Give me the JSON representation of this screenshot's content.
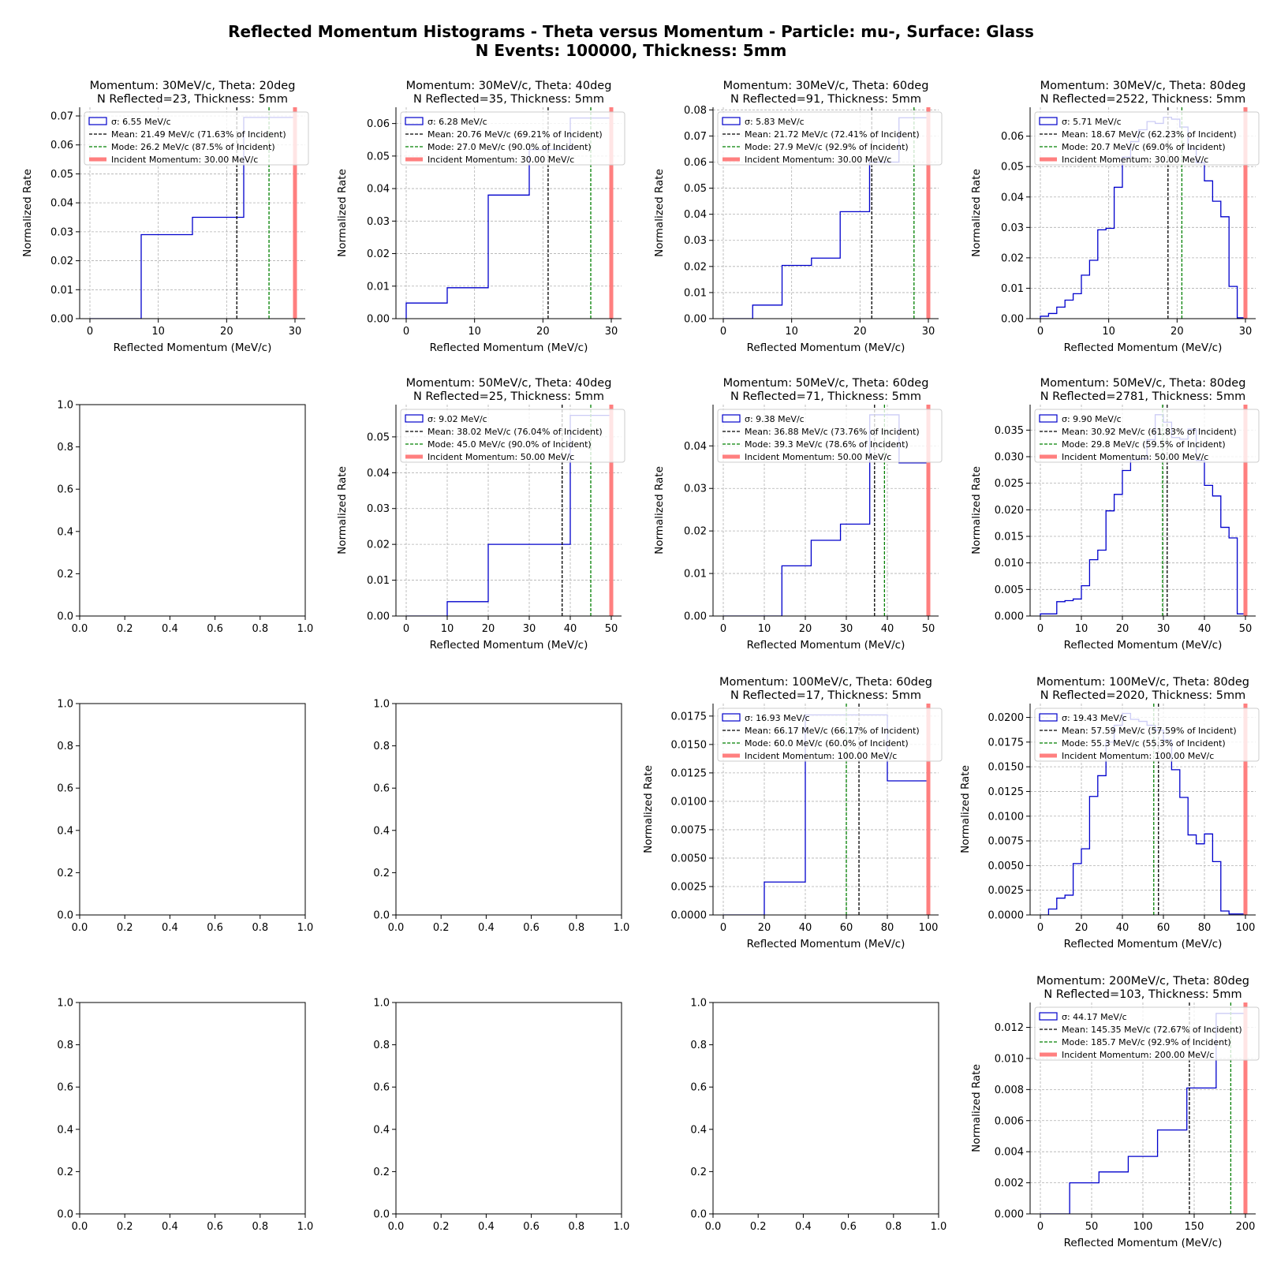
{
  "figure": {
    "title_line1": "Reflected Momentum Histograms - Theta versus Momentum - Particle: mu-, Surface: Glass",
    "title_line2": "N Events: 100000, Thickness: 5mm"
  },
  "colors": {
    "histogram": "#0000cc",
    "mean": "#000000",
    "mode": "#008000",
    "incident": "#ff7f7f",
    "grid": "#b0b0b0"
  },
  "chart_data": [
    {
      "type": "bar",
      "row": 0,
      "col": 0,
      "title": "Momentum: 30MeV/c, Theta: 20deg\n N Reflected=23, Thickness: 5mm",
      "xlabel": "Reflected Momentum (MeV/c)",
      "ylabel": "Normalized Rate",
      "xlim": [
        -1.5,
        31.5
      ],
      "ylim": [
        0,
        0.073
      ],
      "xticks": [
        0,
        10,
        20,
        30
      ],
      "xtick_labels": [
        "0",
        "10",
        "20",
        "30"
      ],
      "yticks": [
        0,
        0.01,
        0.02,
        0.03,
        0.04,
        0.05,
        0.06,
        0.07
      ],
      "ytick_labels": [
        "0.00",
        "0.01",
        "0.02",
        "0.03",
        "0.04",
        "0.05",
        "0.06",
        "0.07"
      ],
      "bin_edges": [
        0,
        7.5,
        15,
        22.5,
        30
      ],
      "values": [
        0,
        0.029,
        0.035,
        0.0695
      ],
      "mean": 21.49,
      "mode": 26.2,
      "incident": 30,
      "legend": [
        "σ: 6.55 MeV/c",
        "Mean: 21.49 MeV/c (71.63% of Incident)",
        "Mode: 26.2 MeV/c (87.5% of Incident)",
        "Incident Momentum: 30.00 MeV/c"
      ]
    },
    {
      "type": "bar",
      "row": 0,
      "col": 1,
      "title": "Momentum: 30MeV/c, Theta: 40deg\n N Reflected=35, Thickness: 5mm",
      "xlabel": "Reflected Momentum (MeV/c)",
      "ylabel": "Normalized Rate",
      "xlim": [
        -1.5,
        31.5
      ],
      "ylim": [
        0,
        0.065
      ],
      "xticks": [
        0,
        10,
        20,
        30
      ],
      "xtick_labels": [
        "0",
        "10",
        "20",
        "30"
      ],
      "yticks": [
        0,
        0.01,
        0.02,
        0.03,
        0.04,
        0.05,
        0.06
      ],
      "ytick_labels": [
        "0.00",
        "0.01",
        "0.02",
        "0.03",
        "0.04",
        "0.05",
        "0.06"
      ],
      "bin_edges": [
        0,
        6,
        12,
        18,
        24,
        30
      ],
      "values": [
        0.0048,
        0.0095,
        0.038,
        0.052,
        0.0617
      ],
      "mean": 20.76,
      "mode": 27.0,
      "incident": 30,
      "legend": [
        "σ: 6.28 MeV/c",
        "Mean: 20.76 MeV/c (69.21% of Incident)",
        "Mode: 27.0 MeV/c (90.0% of Incident)",
        "Incident Momentum: 30.00 MeV/c"
      ]
    },
    {
      "type": "bar",
      "row": 0,
      "col": 2,
      "title": "Momentum: 30MeV/c, Theta: 60deg\n N Reflected=91, Thickness: 5mm",
      "xlabel": "Reflected Momentum (MeV/c)",
      "ylabel": "Normalized Rate",
      "xlim": [
        -1.5,
        31.5
      ],
      "ylim": [
        0,
        0.081
      ],
      "xticks": [
        0,
        10,
        20,
        30
      ],
      "xtick_labels": [
        "0",
        "10",
        "20",
        "30"
      ],
      "yticks": [
        0,
        0.01,
        0.02,
        0.03,
        0.04,
        0.05,
        0.06,
        0.07,
        0.08
      ],
      "ytick_labels": [
        "0.00",
        "0.01",
        "0.02",
        "0.03",
        "0.04",
        "0.05",
        "0.06",
        "0.07",
        "0.08"
      ],
      "bin_edges": [
        0,
        4.3,
        8.6,
        12.9,
        17.1,
        21.4,
        25.7,
        30
      ],
      "values": [
        0,
        0.0052,
        0.0204,
        0.0232,
        0.041,
        0.06,
        0.077
      ],
      "mean": 21.72,
      "mode": 27.9,
      "incident": 30,
      "legend": [
        "σ: 5.83 MeV/c",
        "Mean: 21.72 MeV/c (72.41% of Incident)",
        "Mode: 27.9 MeV/c (92.9% of Incident)",
        "Incident Momentum: 30.00 MeV/c"
      ]
    },
    {
      "type": "bar",
      "row": 0,
      "col": 3,
      "title": "Momentum: 30MeV/c, Theta: 80deg\n N Reflected=2522, Thickness: 5mm",
      "xlabel": "Reflected Momentum (MeV/c)",
      "ylabel": "Normalized Rate",
      "xlim": [
        -1.5,
        31.5
      ],
      "ylim": [
        0,
        0.0695
      ],
      "xticks": [
        0,
        10,
        20,
        30
      ],
      "xtick_labels": [
        "0",
        "10",
        "20",
        "30"
      ],
      "yticks": [
        0,
        0.01,
        0.02,
        0.03,
        0.04,
        0.05,
        0.06
      ],
      "ytick_labels": [
        "0.00",
        "0.01",
        "0.02",
        "0.03",
        "0.04",
        "0.05",
        "0.06"
      ],
      "bin_edges": [
        0,
        1.2,
        2.4,
        3.6,
        4.8,
        6,
        7.2,
        8.4,
        9.6,
        10.8,
        12,
        13.2,
        14.4,
        15.6,
        16.8,
        18,
        19.2,
        20.4,
        21.6,
        22.8,
        24,
        25.2,
        26.4,
        27.6,
        28.8,
        30
      ],
      "values": [
        0.0008,
        0.0017,
        0.0038,
        0.0061,
        0.0082,
        0.0143,
        0.0192,
        0.0292,
        0.0297,
        0.0432,
        0.0531,
        0.0582,
        0.0621,
        0.0648,
        0.0642,
        0.0662,
        0.0656,
        0.063,
        0.0558,
        0.0513,
        0.0453,
        0.0386,
        0.0335,
        0.0106,
        0.0003
      ],
      "mean": 18.67,
      "mode": 20.7,
      "incident": 30,
      "legend": [
        "σ: 5.71 MeV/c",
        "Mean: 18.67 MeV/c (62.23% of Incident)",
        "Mode: 20.7 MeV/c (69.0% of Incident)",
        "Incident Momentum: 30.00 MeV/c"
      ]
    },
    {
      "type": "bar",
      "row": 1,
      "col": 0,
      "empty": true,
      "xlim": [
        0,
        1
      ],
      "ylim": [
        0,
        1
      ],
      "xticks": [
        0,
        0.2,
        0.4,
        0.6,
        0.8,
        1
      ],
      "xtick_labels": [
        "0.0",
        "0.2",
        "0.4",
        "0.6",
        "0.8",
        "1.0"
      ],
      "yticks": [
        0,
        0.2,
        0.4,
        0.6,
        0.8,
        1
      ],
      "ytick_labels": [
        "0.0",
        "0.2",
        "0.4",
        "0.6",
        "0.8",
        "1.0"
      ]
    },
    {
      "type": "bar",
      "row": 1,
      "col": 1,
      "title": "Momentum: 50MeV/c, Theta: 40deg\n N Reflected=25, Thickness: 5mm",
      "xlabel": "Reflected Momentum (MeV/c)",
      "ylabel": "Normalized Rate",
      "xlim": [
        -2.5,
        52.5
      ],
      "ylim": [
        0,
        0.059
      ],
      "xticks": [
        0,
        10,
        20,
        30,
        40,
        50
      ],
      "xtick_labels": [
        "0",
        "10",
        "20",
        "30",
        "40",
        "50"
      ],
      "yticks": [
        0,
        0.01,
        0.02,
        0.03,
        0.04,
        0.05
      ],
      "ytick_labels": [
        "0.00",
        "0.01",
        "0.02",
        "0.03",
        "0.04",
        "0.05"
      ],
      "bin_edges": [
        0,
        10,
        20,
        30,
        40,
        50
      ],
      "values": [
        0,
        0.004,
        0.02,
        0.02,
        0.056
      ],
      "mean": 38.02,
      "mode": 45.0,
      "incident": 50,
      "legend": [
        "σ: 9.02 MeV/c",
        "Mean: 38.02 MeV/c (76.04% of Incident)",
        "Mode: 45.0 MeV/c (90.0% of Incident)",
        "Incident Momentum: 50.00 MeV/c"
      ]
    },
    {
      "type": "bar",
      "row": 1,
      "col": 2,
      "title": "Momentum: 50MeV/c, Theta: 60deg\n N Reflected=71, Thickness: 5mm",
      "xlabel": "Reflected Momentum (MeV/c)",
      "ylabel": "Normalized Rate",
      "xlim": [
        -2.5,
        52.5
      ],
      "ylim": [
        0,
        0.0497
      ],
      "xticks": [
        0,
        10,
        20,
        30,
        40,
        50
      ],
      "xtick_labels": [
        "0",
        "10",
        "20",
        "30",
        "40",
        "50"
      ],
      "yticks": [
        0,
        0.01,
        0.02,
        0.03,
        0.04
      ],
      "ytick_labels": [
        "0.00",
        "0.01",
        "0.02",
        "0.03",
        "0.04"
      ],
      "bin_edges": [
        0,
        7.14,
        14.29,
        21.43,
        28.57,
        35.71,
        42.86,
        50
      ],
      "values": [
        0,
        0,
        0.0118,
        0.0178,
        0.0216,
        0.0473,
        0.036
      ],
      "mean": 36.88,
      "mode": 39.3,
      "incident": 50,
      "legend": [
        "σ: 9.38 MeV/c",
        "Mean: 36.88 MeV/c (73.76% of Incident)",
        "Mode: 39.3 MeV/c (78.6% of Incident)",
        "Incident Momentum: 50.00 MeV/c"
      ]
    },
    {
      "type": "bar",
      "row": 1,
      "col": 3,
      "title": "Momentum: 50MeV/c, Theta: 80deg\n N Reflected=2781, Thickness: 5mm",
      "xlabel": "Reflected Momentum (MeV/c)",
      "ylabel": "Normalized Rate",
      "xlim": [
        -2.5,
        52.5
      ],
      "ylim": [
        0,
        0.0398
      ],
      "xticks": [
        0,
        10,
        20,
        30,
        40,
        50
      ],
      "xtick_labels": [
        "0",
        "10",
        "20",
        "30",
        "40",
        "50"
      ],
      "yticks": [
        0,
        0.005,
        0.01,
        0.015,
        0.02,
        0.025,
        0.03,
        0.035
      ],
      "ytick_labels": [
        "0.000",
        "0.005",
        "0.010",
        "0.015",
        "0.020",
        "0.025",
        "0.030",
        "0.035"
      ],
      "bin_edges": [
        0,
        2,
        4,
        6,
        8,
        10,
        12,
        14,
        16,
        18,
        20,
        22,
        24,
        26,
        28,
        30,
        32,
        34,
        36,
        38,
        40,
        42,
        44,
        46,
        48,
        50
      ],
      "values": [
        0.0004,
        0.0004,
        0.0027,
        0.0029,
        0.0032,
        0.0057,
        0.0106,
        0.0124,
        0.0198,
        0.0229,
        0.0274,
        0.0294,
        0.0296,
        0.0332,
        0.0379,
        0.0365,
        0.0336,
        0.0333,
        0.0352,
        0.0293,
        0.0246,
        0.0226,
        0.0167,
        0.0147,
        0.0004
      ],
      "mean": 30.92,
      "mode": 29.8,
      "incident": 50,
      "legend": [
        "σ: 9.90 MeV/c",
        "Mean: 30.92 MeV/c (61.83% of Incident)",
        "Mode: 29.8 MeV/c (59.5% of Incident)",
        "Incident Momentum: 50.00 MeV/c"
      ]
    },
    {
      "type": "bar",
      "row": 2,
      "col": 0,
      "empty": true,
      "xlim": [
        0,
        1
      ],
      "ylim": [
        0,
        1
      ],
      "xticks": [
        0,
        0.2,
        0.4,
        0.6,
        0.8,
        1
      ],
      "xtick_labels": [
        "0.0",
        "0.2",
        "0.4",
        "0.6",
        "0.8",
        "1.0"
      ],
      "yticks": [
        0,
        0.2,
        0.4,
        0.6,
        0.8,
        1
      ],
      "ytick_labels": [
        "0.0",
        "0.2",
        "0.4",
        "0.6",
        "0.8",
        "1.0"
      ]
    },
    {
      "type": "bar",
      "row": 2,
      "col": 1,
      "empty": true,
      "xlim": [
        0,
        1
      ],
      "ylim": [
        0,
        1
      ],
      "xticks": [
        0,
        0.2,
        0.4,
        0.6,
        0.8,
        1
      ],
      "xtick_labels": [
        "0.0",
        "0.2",
        "0.4",
        "0.6",
        "0.8",
        "1.0"
      ],
      "yticks": [
        0,
        0.2,
        0.4,
        0.6,
        0.8,
        1
      ],
      "ytick_labels": [
        "0.0",
        "0.2",
        "0.4",
        "0.6",
        "0.8",
        "1.0"
      ]
    },
    {
      "type": "bar",
      "row": 2,
      "col": 2,
      "title": "Momentum: 100MeV/c, Theta: 60deg\n N Reflected=17, Thickness: 5mm",
      "xlabel": "Reflected Momentum (MeV/c)",
      "ylabel": "Normalized Rate",
      "xlim": [
        -5,
        105
      ],
      "ylim": [
        0,
        0.0186
      ],
      "xticks": [
        0,
        20,
        40,
        60,
        80,
        100
      ],
      "xtick_labels": [
        "0",
        "20",
        "40",
        "60",
        "80",
        "100"
      ],
      "yticks": [
        0,
        0.0025,
        0.005,
        0.0075,
        0.01,
        0.0125,
        0.015,
        0.0175
      ],
      "ytick_labels": [
        "0.0000",
        "0.0025",
        "0.0050",
        "0.0075",
        "0.0100",
        "0.0125",
        "0.0150",
        "0.0175"
      ],
      "bin_edges": [
        0,
        20,
        40,
        60,
        80,
        100
      ],
      "values": [
        0,
        0.0029,
        0.0176,
        0.0176,
        0.0118
      ],
      "mean": 66.17,
      "mode": 60.0,
      "incident": 100,
      "legend": [
        "σ: 16.93 MeV/c",
        "Mean: 66.17 MeV/c (66.17% of Incident)",
        "Mode: 60.0 MeV/c (60.0% of Incident)",
        "Incident Momentum: 100.00 MeV/c"
      ]
    },
    {
      "type": "bar",
      "row": 2,
      "col": 3,
      "title": "Momentum: 100MeV/c, Theta: 80deg\n N Reflected=2020, Thickness: 5mm",
      "xlabel": "Reflected Momentum (MeV/c)",
      "ylabel": "Normalized Rate",
      "xlim": [
        -5,
        105
      ],
      "ylim": [
        0,
        0.0214
      ],
      "xticks": [
        0,
        20,
        40,
        60,
        80,
        100
      ],
      "xtick_labels": [
        "0",
        "20",
        "40",
        "60",
        "80",
        "100"
      ],
      "yticks": [
        0,
        0.0025,
        0.005,
        0.0075,
        0.01,
        0.0125,
        0.015,
        0.0175,
        0.02
      ],
      "ytick_labels": [
        "0.0000",
        "0.0025",
        "0.0050",
        "0.0075",
        "0.0100",
        "0.0125",
        "0.0150",
        "0.0175",
        "0.0200"
      ],
      "bin_edges": [
        0,
        4,
        8,
        12,
        16,
        20,
        24,
        28,
        32,
        36,
        40,
        44,
        48,
        52,
        56,
        60,
        64,
        68,
        72,
        76,
        80,
        84,
        88,
        92,
        96,
        100
      ],
      "values": [
        0,
        0.0006,
        0.0017,
        0.002,
        0.0052,
        0.0067,
        0.012,
        0.0141,
        0.0175,
        0.0192,
        0.0204,
        0.0198,
        0.0196,
        0.0192,
        0.0187,
        0.0177,
        0.0147,
        0.0119,
        0.0081,
        0.0072,
        0.0082,
        0.0054,
        0.0004,
        0.0001,
        0.0001
      ],
      "mean": 57.59,
      "mode": 55.3,
      "incident": 100,
      "legend": [
        "σ: 19.43 MeV/c",
        "Mean: 57.59 MeV/c (57.59% of Incident)",
        "Mode: 55.3 MeV/c (55.3% of Incident)",
        "Incident Momentum: 100.00 MeV/c"
      ]
    },
    {
      "type": "bar",
      "row": 3,
      "col": 0,
      "empty": true,
      "xlim": [
        0,
        1
      ],
      "ylim": [
        0,
        1
      ],
      "xticks": [
        0,
        0.2,
        0.4,
        0.6,
        0.8,
        1
      ],
      "xtick_labels": [
        "0.0",
        "0.2",
        "0.4",
        "0.6",
        "0.8",
        "1.0"
      ],
      "yticks": [
        0,
        0.2,
        0.4,
        0.6,
        0.8,
        1
      ],
      "ytick_labels": [
        "0.0",
        "0.2",
        "0.4",
        "0.6",
        "0.8",
        "1.0"
      ]
    },
    {
      "type": "bar",
      "row": 3,
      "col": 1,
      "empty": true,
      "xlim": [
        0,
        1
      ],
      "ylim": [
        0,
        1
      ],
      "xticks": [
        0,
        0.2,
        0.4,
        0.6,
        0.8,
        1
      ],
      "xtick_labels": [
        "0.0",
        "0.2",
        "0.4",
        "0.6",
        "0.8",
        "1.0"
      ],
      "yticks": [
        0,
        0.2,
        0.4,
        0.6,
        0.8,
        1
      ],
      "ytick_labels": [
        "0.0",
        "0.2",
        "0.4",
        "0.6",
        "0.8",
        "1.0"
      ]
    },
    {
      "type": "bar",
      "row": 3,
      "col": 2,
      "empty": true,
      "xlim": [
        0,
        1
      ],
      "ylim": [
        0,
        1
      ],
      "xticks": [
        0,
        0.2,
        0.4,
        0.6,
        0.8,
        1
      ],
      "xtick_labels": [
        "0.0",
        "0.2",
        "0.4",
        "0.6",
        "0.8",
        "1.0"
      ],
      "yticks": [
        0,
        0.2,
        0.4,
        0.6,
        0.8,
        1
      ],
      "ytick_labels": [
        "0.0",
        "0.2",
        "0.4",
        "0.6",
        "0.8",
        "1.0"
      ]
    },
    {
      "type": "bar",
      "row": 3,
      "col": 3,
      "title": "Momentum: 200MeV/c, Theta: 80deg\n N Reflected=103, Thickness: 5mm",
      "xlabel": "Reflected Momentum (MeV/c)",
      "ylabel": "Normalized Rate",
      "xlim": [
        -10,
        210
      ],
      "ylim": [
        0,
        0.0136
      ],
      "xticks": [
        0,
        50,
        100,
        150,
        200
      ],
      "xtick_labels": [
        "0",
        "50",
        "100",
        "150",
        "200"
      ],
      "yticks": [
        0,
        0.002,
        0.004,
        0.006,
        0.008,
        0.01,
        0.012
      ],
      "ytick_labels": [
        "0.000",
        "0.002",
        "0.004",
        "0.006",
        "0.008",
        "0.010",
        "0.012"
      ],
      "bin_edges": [
        0,
        28.57,
        57.14,
        85.71,
        114.29,
        142.86,
        171.43,
        200
      ],
      "values": [
        0,
        0.002,
        0.0027,
        0.0037,
        0.0054,
        0.0081,
        0.0129
      ],
      "mean": 145.35,
      "mode": 185.7,
      "incident": 200,
      "legend": [
        "σ: 44.17 MeV/c",
        "Mean: 145.35 MeV/c (72.67% of Incident)",
        "Mode: 185.7 MeV/c (92.9% of Incident)",
        "Incident Momentum: 200.00 MeV/c"
      ]
    }
  ]
}
